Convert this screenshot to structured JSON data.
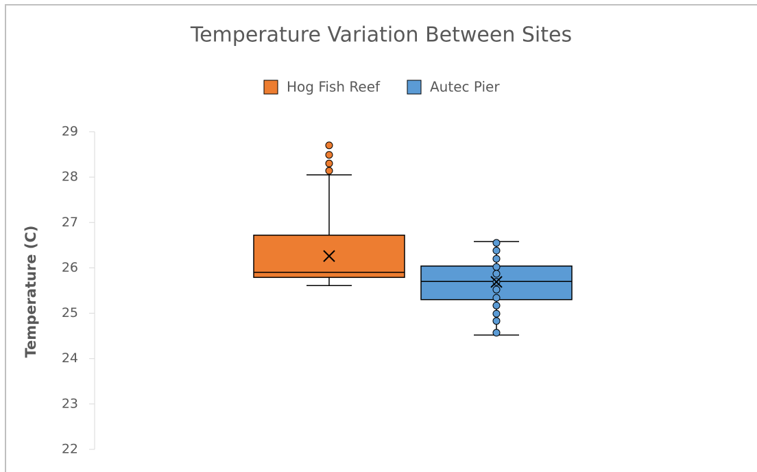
{
  "chart_data": {
    "type": "box",
    "title": "Temperature Variation Between Sites",
    "y_label": "Temperature (C)",
    "ylim": [
      22,
      29
    ],
    "yticks": [
      22,
      23,
      24,
      25,
      26,
      27,
      28,
      29
    ],
    "legend": "top",
    "series": [
      {
        "name": "Hog Fish Reef",
        "color": "#ed7d31",
        "whisker_low": 25.61,
        "q1": 25.79,
        "median": 25.9,
        "q3": 26.72,
        "whisker_high": 28.05,
        "mean": 26.26,
        "outliers": [
          28.14,
          28.3,
          28.49,
          28.7
        ],
        "points": []
      },
      {
        "name": "Autec Pier",
        "color": "#5b9bd5",
        "whisker_low": 24.52,
        "q1": 25.3,
        "median": 25.7,
        "q3": 26.04,
        "whisker_high": 26.58,
        "mean": 25.69,
        "outliers": [],
        "points": [
          26.55,
          26.38,
          26.2,
          26.02,
          25.87,
          25.69,
          25.52,
          25.34,
          25.17,
          24.99,
          24.83,
          24.57
        ]
      }
    ]
  }
}
